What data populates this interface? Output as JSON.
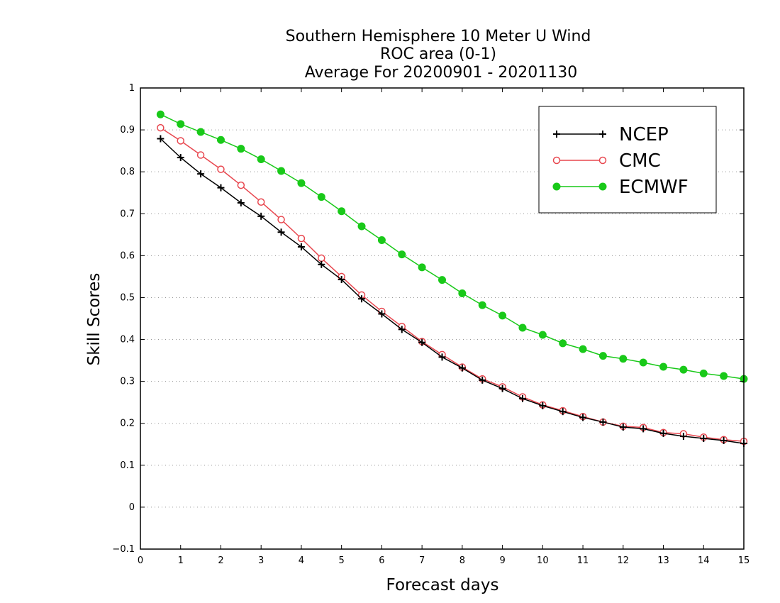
{
  "chart_data": {
    "type": "line",
    "title_lines": [
      "Southern Hemisphere 10 Meter U Wind",
      "ROC area (0-1)",
      "Average For 20200901 - 20201130"
    ],
    "xlabel": "Forecast days",
    "ylabel": "Skill Scores",
    "xlim": [
      0,
      15
    ],
    "ylim": [
      -0.1,
      1
    ],
    "x_ticks": [
      "0",
      "1",
      "2",
      "3",
      "4",
      "5",
      "6",
      "7",
      "8",
      "9",
      "10",
      "11",
      "12",
      "13",
      "14",
      "15"
    ],
    "y_ticks": [
      "−0.1",
      "0",
      "0.1",
      "0.2",
      "0.3",
      "0.4",
      "0.5",
      "0.6",
      "0.7",
      "0.8",
      "0.9",
      "1"
    ],
    "grid": "dotted horizontal",
    "legend_position": "top-right",
    "x": [
      0.5,
      1,
      1.5,
      2,
      2.5,
      3,
      3.5,
      4,
      4.5,
      5,
      5.5,
      6,
      6.5,
      7,
      7.5,
      8,
      8.5,
      9,
      9.5,
      10,
      10.5,
      11,
      11.5,
      12,
      12.5,
      13,
      13.5,
      14,
      14.5,
      15
    ],
    "series": [
      {
        "name": "NCEP",
        "color": "#000000",
        "marker": "plus",
        "values": [
          0.879,
          0.834,
          0.795,
          0.762,
          0.726,
          0.694,
          0.656,
          0.621,
          0.579,
          0.543,
          0.497,
          0.461,
          0.424,
          0.393,
          0.358,
          0.332,
          0.303,
          0.283,
          0.259,
          0.242,
          0.228,
          0.214,
          0.203,
          0.191,
          0.187,
          0.176,
          0.169,
          0.164,
          0.159,
          0.152
        ]
      },
      {
        "name": "CMC",
        "color": "#e8474f",
        "marker": "open-circle",
        "values": [
          0.905,
          0.874,
          0.84,
          0.806,
          0.768,
          0.728,
          0.686,
          0.641,
          0.594,
          0.55,
          0.506,
          0.467,
          0.431,
          0.395,
          0.364,
          0.334,
          0.306,
          0.287,
          0.263,
          0.244,
          0.23,
          0.216,
          0.203,
          0.193,
          0.19,
          0.178,
          0.175,
          0.167,
          0.161,
          0.157
        ]
      },
      {
        "name": "ECMWF",
        "color": "#19c919",
        "marker": "filled-circle",
        "values": [
          0.937,
          0.914,
          0.895,
          0.876,
          0.855,
          0.83,
          0.802,
          0.773,
          0.74,
          0.706,
          0.67,
          0.637,
          0.603,
          0.572,
          0.542,
          0.51,
          0.482,
          0.457,
          0.428,
          0.411,
          0.391,
          0.377,
          0.361,
          0.354,
          0.345,
          0.335,
          0.328,
          0.319,
          0.313,
          0.306
        ]
      }
    ]
  }
}
